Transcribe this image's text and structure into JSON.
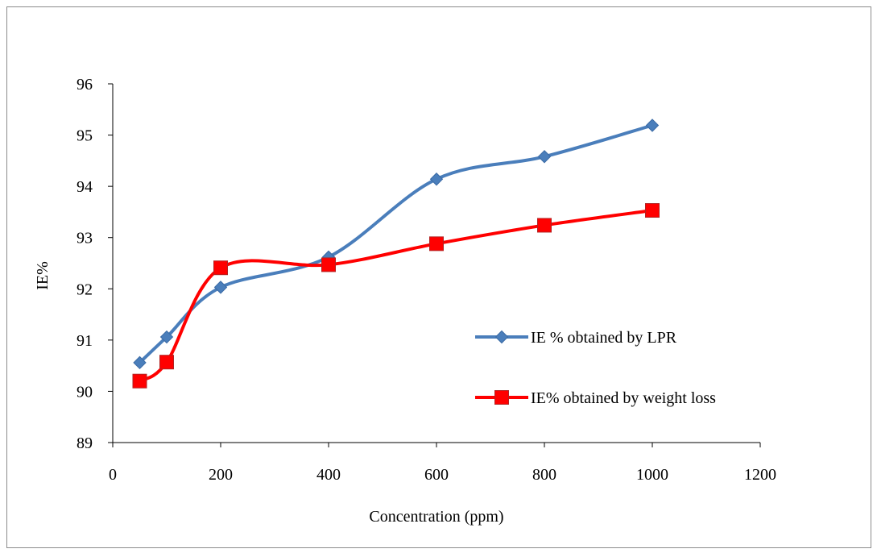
{
  "chart_data": {
    "type": "line",
    "title": "",
    "xlabel": "Concentration (ppm)",
    "ylabel": "IE%",
    "xlim": [
      0,
      1200
    ],
    "ylim": [
      89,
      96
    ],
    "x_ticks": [
      0,
      200,
      400,
      600,
      800,
      1000,
      1200
    ],
    "y_ticks": [
      89,
      90,
      91,
      92,
      93,
      94,
      95,
      96
    ],
    "grid": false,
    "legend_position": "right",
    "smoothed": true,
    "series": [
      {
        "name": "IE % obtained by LPR",
        "marker": "diamond",
        "color": "#4a7ebb",
        "x": [
          50,
          100,
          200,
          400,
          600,
          800,
          1000
        ],
        "y": [
          90.56,
          91.06,
          92.03,
          92.62,
          94.14,
          94.58,
          95.19
        ]
      },
      {
        "name": "IE% obtained by weight loss",
        "marker": "square",
        "color": "#ff0000",
        "x": [
          50,
          100,
          200,
          400,
          600,
          800,
          1000
        ],
        "y": [
          90.2,
          90.57,
          92.41,
          92.47,
          92.88,
          93.24,
          93.53
        ]
      }
    ]
  }
}
